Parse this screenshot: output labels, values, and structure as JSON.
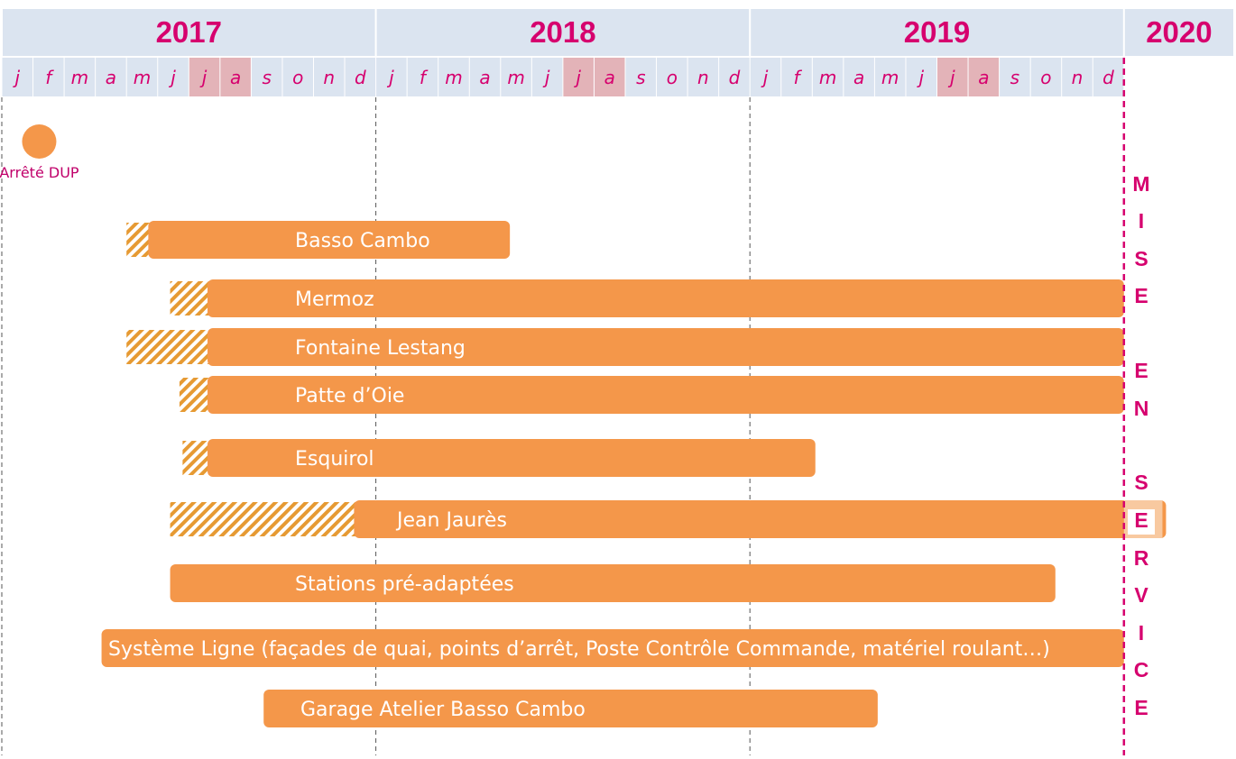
{
  "chart_data": {
    "type": "gantt",
    "time_unit": "month",
    "years": [
      "2017",
      "2018",
      "2019",
      "2020"
    ],
    "month_labels": [
      "j",
      "f",
      "m",
      "a",
      "m",
      "j",
      "j",
      "a",
      "s",
      "o",
      "n",
      "d"
    ],
    "highlighted_months": [
      7,
      8
    ],
    "milestone": {
      "label": "Arrêté DUP",
      "date": "2017-02"
    },
    "vertical_label": {
      "text": "MISE EN SERVICE",
      "date": "2020-01-01"
    },
    "colors": {
      "bar": "#f4974a",
      "bar_light": "#f8c9a0",
      "hatch": "#e69a33",
      "accent": "#d6006e",
      "header_bg": "#dbe4f0",
      "highlight_month": "#e3b3b8"
    },
    "tasks": [
      {
        "label": "Basso Cambo",
        "prep_start": 4.0,
        "start": 4.7,
        "end": 16.3
      },
      {
        "label": "Mermoz",
        "prep_start": 5.4,
        "start": 6.6,
        "end": 36.0
      },
      {
        "label": "Fontaine Lestang",
        "prep_start": 4.0,
        "start": 6.6,
        "end": 36.0
      },
      {
        "label": "Patte d’Oie",
        "prep_start": 5.7,
        "start": 6.6,
        "end": 36.0
      },
      {
        "label": "Esquirol",
        "prep_start": 5.8,
        "start": 6.6,
        "end": 26.1
      },
      {
        "label": "Jean Jaurès",
        "prep_start": 5.4,
        "start": 11.3,
        "end": 37.35
      },
      {
        "label": "Stations pré-adaptées",
        "start": 5.4,
        "end": 33.8
      },
      {
        "label": "Système Ligne (façades de quai, points d’arrêt, Poste Contrôle Commande, matériel roulant…)",
        "start": 3.2,
        "end": 36.0
      },
      {
        "label": "Garage Atelier Basso Cambo",
        "start": 8.4,
        "end": 28.1
      }
    ]
  }
}
